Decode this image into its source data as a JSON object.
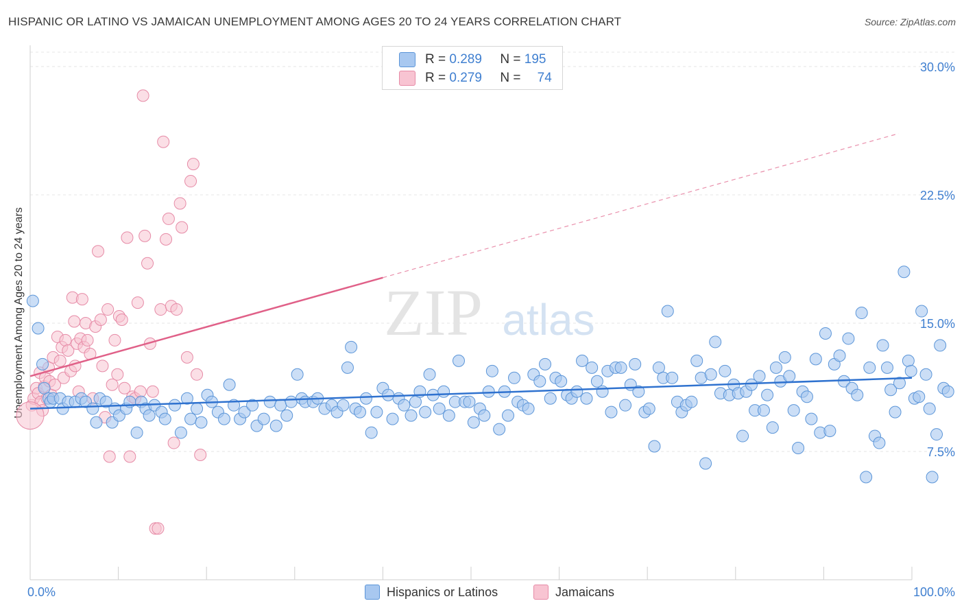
{
  "title": "HISPANIC OR LATINO VS JAMAICAN UNEMPLOYMENT AMONG AGES 20 TO 24 YEARS CORRELATION CHART",
  "source": "Source: ZipAtlas.com",
  "watermark": {
    "zip": "ZIP",
    "atlas": "atlas"
  },
  "legend": {
    "rows": [
      {
        "r_label": "R =",
        "r_value": "0.289",
        "n_label": "N =",
        "n_value": "195"
      },
      {
        "r_label": "R =",
        "r_value": "0.279",
        "n_label": "N =",
        "n_value": "74"
      }
    ],
    "bottom": [
      "Hispanics or Latinos",
      "Jamaicans"
    ]
  },
  "colors": {
    "blue_fill": "#a8c8f0",
    "blue_stroke": "#5b95d8",
    "blue_line": "#2f72cf",
    "pink_fill": "#f8c4d2",
    "pink_stroke": "#e68aa6",
    "pink_line": "#e06088",
    "axis_text": "#3f7fd0",
    "grid": "#e5e5e5"
  },
  "chart_data": {
    "type": "scatter",
    "title": "HISPANIC OR LATINO VS JAMAICAN UNEMPLOYMENT AMONG AGES 20 TO 24 YEARS CORRELATION CHART",
    "xlabel": "",
    "ylabel": "Unemployment Among Ages 20 to 24 years",
    "xlim": [
      0,
      100
    ],
    "ylim": [
      0,
      30.5
    ],
    "x_tick_labels": [
      "0.0%",
      "100.0%"
    ],
    "y_ticks": [
      7.5,
      15.0,
      22.5,
      30.0
    ],
    "y_tick_labels": [
      "7.5%",
      "15.0%",
      "22.5%",
      "30.0%"
    ],
    "grid": true,
    "legend_position": "top-center",
    "series": [
      {
        "name": "Hispanics or Latinos",
        "r": 0.289,
        "n": 195,
        "trend": {
          "x": [
            0,
            100
          ],
          "y": [
            10.0,
            11.8
          ],
          "dashed_from": null
        },
        "points": [
          [
            0.3,
            16.3
          ],
          [
            0.9,
            14.7
          ],
          [
            1.4,
            12.6
          ],
          [
            1.6,
            11.2
          ],
          [
            2.1,
            10.6
          ],
          [
            2.3,
            10.4
          ],
          [
            2.6,
            10.6
          ],
          [
            3.4,
            10.6
          ],
          [
            3.7,
            10.0
          ],
          [
            4.3,
            10.4
          ],
          [
            5.1,
            10.4
          ],
          [
            5.8,
            10.6
          ],
          [
            6.3,
            10.4
          ],
          [
            7.1,
            10.0
          ],
          [
            7.5,
            9.2
          ],
          [
            7.9,
            10.6
          ],
          [
            8.6,
            10.4
          ],
          [
            9.3,
            9.2
          ],
          [
            9.6,
            10.0
          ],
          [
            10.1,
            9.6
          ],
          [
            10.9,
            10.0
          ],
          [
            11.3,
            10.4
          ],
          [
            12.1,
            8.6
          ],
          [
            12.6,
            10.4
          ],
          [
            13.1,
            10.0
          ],
          [
            13.5,
            9.6
          ],
          [
            14.1,
            10.2
          ],
          [
            14.9,
            9.8
          ],
          [
            15.3,
            9.4
          ],
          [
            16.4,
            10.2
          ],
          [
            17.1,
            8.6
          ],
          [
            17.8,
            10.6
          ],
          [
            18.2,
            9.4
          ],
          [
            18.9,
            10.0
          ],
          [
            19.4,
            9.2
          ],
          [
            20.1,
            10.8
          ],
          [
            20.6,
            10.4
          ],
          [
            21.3,
            9.8
          ],
          [
            22.0,
            9.4
          ],
          [
            22.6,
            11.4
          ],
          [
            23.1,
            10.2
          ],
          [
            23.8,
            9.4
          ],
          [
            24.3,
            9.8
          ],
          [
            25.2,
            10.2
          ],
          [
            25.7,
            9.0
          ],
          [
            26.5,
            9.4
          ],
          [
            27.2,
            10.4
          ],
          [
            27.9,
            9.0
          ],
          [
            28.4,
            10.2
          ],
          [
            29.1,
            9.6
          ],
          [
            29.6,
            10.4
          ],
          [
            30.3,
            12.0
          ],
          [
            30.8,
            10.6
          ],
          [
            31.2,
            10.4
          ],
          [
            32.1,
            10.4
          ],
          [
            32.6,
            10.6
          ],
          [
            33.4,
            10.0
          ],
          [
            34.2,
            10.2
          ],
          [
            34.8,
            9.8
          ],
          [
            35.5,
            10.2
          ],
          [
            36.0,
            12.4
          ],
          [
            36.4,
            13.6
          ],
          [
            36.9,
            10.0
          ],
          [
            37.4,
            9.8
          ],
          [
            38.1,
            10.6
          ],
          [
            38.7,
            8.6
          ],
          [
            39.3,
            9.8
          ],
          [
            40.0,
            11.2
          ],
          [
            40.6,
            10.8
          ],
          [
            41.1,
            9.4
          ],
          [
            41.8,
            10.6
          ],
          [
            42.4,
            10.2
          ],
          [
            43.2,
            9.6
          ],
          [
            43.7,
            10.4
          ],
          [
            44.2,
            11.0
          ],
          [
            44.8,
            9.8
          ],
          [
            45.3,
            12.0
          ],
          [
            45.7,
            10.8
          ],
          [
            46.4,
            10.0
          ],
          [
            46.9,
            11.0
          ],
          [
            47.5,
            9.6
          ],
          [
            48.2,
            10.4
          ],
          [
            48.6,
            12.8
          ],
          [
            49.3,
            10.4
          ],
          [
            49.8,
            10.4
          ],
          [
            50.3,
            9.2
          ],
          [
            51.0,
            10.0
          ],
          [
            51.5,
            9.6
          ],
          [
            52.0,
            11.0
          ],
          [
            52.4,
            12.2
          ],
          [
            53.2,
            8.8
          ],
          [
            53.8,
            11.0
          ],
          [
            54.2,
            9.6
          ],
          [
            54.9,
            11.8
          ],
          [
            55.3,
            10.4
          ],
          [
            55.9,
            10.2
          ],
          [
            56.5,
            10.0
          ],
          [
            57.1,
            12.0
          ],
          [
            57.8,
            11.6
          ],
          [
            58.4,
            12.6
          ],
          [
            59.0,
            10.6
          ],
          [
            59.6,
            11.8
          ],
          [
            60.2,
            11.6
          ],
          [
            60.9,
            10.8
          ],
          [
            61.4,
            10.6
          ],
          [
            62.0,
            11.0
          ],
          [
            62.6,
            12.8
          ],
          [
            63.1,
            10.6
          ],
          [
            63.7,
            12.4
          ],
          [
            64.3,
            11.6
          ],
          [
            64.9,
            11.0
          ],
          [
            65.5,
            12.2
          ],
          [
            65.9,
            9.8
          ],
          [
            66.4,
            12.4
          ],
          [
            67.0,
            12.4
          ],
          [
            67.5,
            10.2
          ],
          [
            68.1,
            11.4
          ],
          [
            68.6,
            12.6
          ],
          [
            69.0,
            11.0
          ],
          [
            69.7,
            9.8
          ],
          [
            70.2,
            10.0
          ],
          [
            70.8,
            7.8
          ],
          [
            71.3,
            12.4
          ],
          [
            71.8,
            11.8
          ],
          [
            72.3,
            15.7
          ],
          [
            72.8,
            11.8
          ],
          [
            73.4,
            10.4
          ],
          [
            73.9,
            9.8
          ],
          [
            74.4,
            10.2
          ],
          [
            75.0,
            10.4
          ],
          [
            75.6,
            12.8
          ],
          [
            76.1,
            11.8
          ],
          [
            76.6,
            6.8
          ],
          [
            77.2,
            12.0
          ],
          [
            77.7,
            13.9
          ],
          [
            78.3,
            10.9
          ],
          [
            78.8,
            12.2
          ],
          [
            79.3,
            10.8
          ],
          [
            79.8,
            11.4
          ],
          [
            80.3,
            10.9
          ],
          [
            80.8,
            8.4
          ],
          [
            81.2,
            11.0
          ],
          [
            81.8,
            11.4
          ],
          [
            82.2,
            9.9
          ],
          [
            82.7,
            11.9
          ],
          [
            83.2,
            9.9
          ],
          [
            83.6,
            10.8
          ],
          [
            84.2,
            8.9
          ],
          [
            84.6,
            12.4
          ],
          [
            85.1,
            11.6
          ],
          [
            85.6,
            13.0
          ],
          [
            86.1,
            11.9
          ],
          [
            86.6,
            9.9
          ],
          [
            87.1,
            7.7
          ],
          [
            87.6,
            11.0
          ],
          [
            88.1,
            10.7
          ],
          [
            88.6,
            9.4
          ],
          [
            89.1,
            12.9
          ],
          [
            89.6,
            8.6
          ],
          [
            90.2,
            14.4
          ],
          [
            90.7,
            8.7
          ],
          [
            91.2,
            12.6
          ],
          [
            91.8,
            13.1
          ],
          [
            92.3,
            11.6
          ],
          [
            92.8,
            14.1
          ],
          [
            93.2,
            11.2
          ],
          [
            93.8,
            10.8
          ],
          [
            94.3,
            15.6
          ],
          [
            94.8,
            6.0
          ],
          [
            95.2,
            12.4
          ],
          [
            95.8,
            8.4
          ],
          [
            96.3,
            8.0
          ],
          [
            96.7,
            13.7
          ],
          [
            97.2,
            12.4
          ],
          [
            97.6,
            11.1
          ],
          [
            98.1,
            9.8
          ],
          [
            98.6,
            11.5
          ],
          [
            99.1,
            18.0
          ],
          [
            99.6,
            12.8
          ],
          [
            99.9,
            12.2
          ],
          [
            100.3,
            10.6
          ],
          [
            100.8,
            10.7
          ],
          [
            101.1,
            15.7
          ],
          [
            101.6,
            12.0
          ],
          [
            102.0,
            10.0
          ],
          [
            102.3,
            6.0
          ],
          [
            102.8,
            8.5
          ],
          [
            103.2,
            13.7
          ],
          [
            103.6,
            11.2
          ],
          [
            104.1,
            11.0
          ]
        ]
      },
      {
        "name": "Jamaicans",
        "r": 0.279,
        "n": 74,
        "trend": {
          "x": [
            0,
            100
          ],
          "y": [
            11.9,
            26.3
          ],
          "dashed_from": 40
        },
        "points": [
          [
            0.2,
            10.2
          ],
          [
            0.4,
            10.6
          ],
          [
            0.7,
            11.2
          ],
          [
            0.9,
            10.9
          ],
          [
            1.1,
            12.1
          ],
          [
            1.2,
            10.4
          ],
          [
            1.4,
            9.9
          ],
          [
            1.6,
            11.3
          ],
          [
            1.7,
            11.8
          ],
          [
            1.9,
            10.6
          ],
          [
            2.1,
            12.4
          ],
          [
            2.2,
            11.6
          ],
          [
            2.4,
            10.8
          ],
          [
            2.6,
            13.0
          ],
          [
            2.8,
            11.4
          ],
          [
            3.1,
            14.2
          ],
          [
            3.4,
            12.8
          ],
          [
            3.6,
            13.6
          ],
          [
            3.8,
            11.8
          ],
          [
            4.0,
            14.0
          ],
          [
            4.3,
            13.4
          ],
          [
            4.6,
            12.2
          ],
          [
            4.8,
            16.5
          ],
          [
            5.0,
            15.1
          ],
          [
            5.1,
            12.5
          ],
          [
            5.3,
            13.8
          ],
          [
            5.5,
            11.0
          ],
          [
            5.7,
            14.1
          ],
          [
            5.9,
            16.4
          ],
          [
            6.1,
            13.6
          ],
          [
            6.3,
            15.0
          ],
          [
            6.5,
            14.0
          ],
          [
            6.8,
            13.2
          ],
          [
            7.1,
            10.6
          ],
          [
            7.4,
            14.8
          ],
          [
            7.7,
            19.2
          ],
          [
            8.0,
            15.2
          ],
          [
            8.2,
            12.5
          ],
          [
            8.5,
            9.5
          ],
          [
            8.8,
            15.8
          ],
          [
            9.0,
            7.2
          ],
          [
            9.3,
            11.4
          ],
          [
            9.6,
            14.0
          ],
          [
            9.9,
            12.0
          ],
          [
            10.1,
            15.4
          ],
          [
            10.4,
            15.2
          ],
          [
            10.7,
            11.2
          ],
          [
            11.0,
            20.0
          ],
          [
            11.3,
            7.2
          ],
          [
            11.6,
            10.7
          ],
          [
            11.9,
            10.6
          ],
          [
            12.2,
            16.2
          ],
          [
            12.5,
            11.0
          ],
          [
            12.8,
            28.3
          ],
          [
            13.0,
            20.1
          ],
          [
            13.3,
            18.5
          ],
          [
            13.6,
            13.8
          ],
          [
            13.9,
            11.0
          ],
          [
            14.2,
            3.0
          ],
          [
            14.5,
            3.0
          ],
          [
            14.8,
            15.8
          ],
          [
            15.1,
            25.6
          ],
          [
            15.4,
            19.9
          ],
          [
            15.7,
            21.1
          ],
          [
            16.0,
            16.0
          ],
          [
            16.3,
            8.0
          ],
          [
            16.6,
            15.8
          ],
          [
            17.0,
            22.0
          ],
          [
            17.2,
            20.6
          ],
          [
            17.8,
            13.0
          ],
          [
            18.2,
            23.3
          ],
          [
            18.5,
            24.3
          ],
          [
            18.9,
            12.0
          ],
          [
            19.3,
            7.3
          ]
        ]
      }
    ]
  }
}
